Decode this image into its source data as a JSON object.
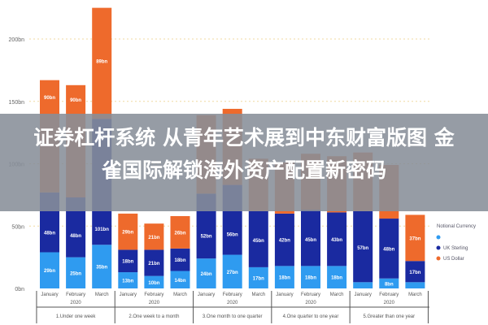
{
  "headline": {
    "line1": "证券杠杆系统 从青年艺术展到中东财富版图 金",
    "line2": "雀国际解锁海外资产配置新密码"
  },
  "chart_data": {
    "type": "bar",
    "stacked": true,
    "title": "",
    "xlabel": "",
    "ylabel": "",
    "ylim": [
      0,
      230
    ],
    "yticks": [
      "0bn",
      "50bn",
      "100bn",
      "150bn",
      "200bn"
    ],
    "ytick_values": [
      0,
      50,
      100,
      150,
      200
    ],
    "grid": true,
    "legend": {
      "title": "Notional Currency",
      "placement": "right",
      "entries": [
        "",
        "UK Sterling",
        "US Dollar"
      ]
    },
    "groups": [
      {
        "label": "1.Under one week",
        "year": "2020",
        "months": [
          "January",
          "February",
          "March"
        ]
      },
      {
        "label": "2.One week to a month",
        "year": "2020",
        "months": [
          "January",
          "February",
          "March"
        ]
      },
      {
        "label": "3.One month to one quarter",
        "year": "2020",
        "months": [
          "January",
          "February",
          "March"
        ]
      },
      {
        "label": "4.One quarter to one year",
        "year": "2020",
        "months": [
          "January",
          "February",
          "March"
        ]
      },
      {
        "label": "5.Greater than one year",
        "year": "2020",
        "months": [
          "January",
          "February",
          "March"
        ]
      }
    ],
    "series": [
      {
        "name": "",
        "color": "#2f9bf0",
        "values": [
          29,
          25,
          35,
          13,
          10,
          14,
          24,
          27,
          17,
          18,
          18,
          18,
          5,
          8,
          5
        ]
      },
      {
        "name": "UK Sterling",
        "color": "#1a2aa0",
        "values": [
          48,
          48,
          101,
          18,
          21,
          18,
          52,
          56,
          45,
          42,
          45,
          43,
          57,
          48,
          17
        ]
      },
      {
        "name": "US Dollar",
        "color": "#ee6a2c",
        "values": [
          90,
          90,
          89,
          29,
          21,
          26,
          63,
          61,
          42,
          41,
          45,
          45,
          47,
          43,
          37
        ]
      }
    ]
  }
}
